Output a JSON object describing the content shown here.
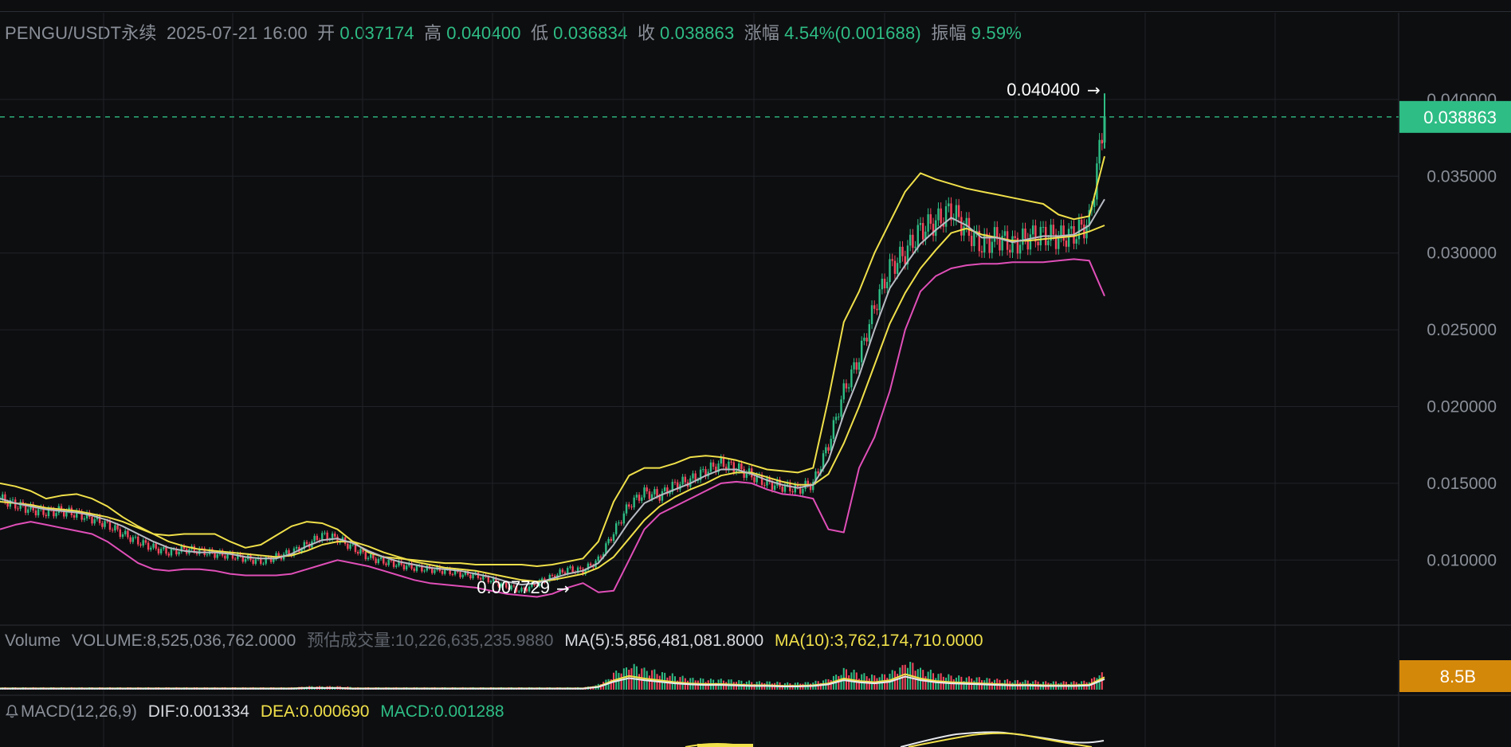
{
  "header": {
    "symbol": "PENGU/USDT永续",
    "datetime": "2025-07-21 16:00",
    "open_label": "开",
    "open": "0.037174",
    "high_label": "高",
    "high": "0.040400",
    "low_label": "低",
    "low": "0.036834",
    "close_label": "收",
    "close": "0.038863",
    "change_label": "涨幅",
    "change": "4.54%(0.001688)",
    "amplitude_label": "振幅",
    "amplitude": "9.59%"
  },
  "volume": {
    "title": "Volume",
    "volume": "VOLUME:8,525,036,762.0000",
    "estimated": "预估成交量:10,226,635,235.9880",
    "ma5": "MA(5):5,856,481,081.8000",
    "ma10": "MA(10):3,762,174,710.0000",
    "badge": "8.5B"
  },
  "macd": {
    "title": "MACD(12,26,9)",
    "dif": "DIF:0.001334",
    "dea": "DEA:0.000690",
    "macd": "MACD:0.001288"
  },
  "colors": {
    "up": "#2ebd85",
    "down": "#f6465d",
    "bg": "#0d0e10",
    "grid": "#1f2227",
    "ma_yellow": "#f0e04a",
    "boll_lower": "#e04fb8",
    "ma_white": "#e6e8ec"
  },
  "chart_data": {
    "type": "line",
    "price_axis": {
      "ticks": [
        0.04,
        0.035,
        0.03,
        0.025,
        0.02,
        0.015,
        0.01
      ],
      "tick_labels": [
        "0.040000",
        "0.035000",
        "0.030000",
        "0.025000",
        "0.020000",
        "0.015000",
        "0.010000"
      ],
      "range": [
        0.0055,
        0.0415
      ]
    },
    "current_price": "0.038863",
    "high_marker": "0.040400",
    "low_marker": "0.007729",
    "close_series": [
      0.014,
      0.0136,
      0.0133,
      0.0131,
      0.0132,
      0.013,
      0.0127,
      0.0123,
      0.0117,
      0.0112,
      0.0108,
      0.0105,
      0.0107,
      0.0106,
      0.0104,
      0.0103,
      0.0101,
      0.0099,
      0.0102,
      0.0105,
      0.011,
      0.0116,
      0.0114,
      0.0108,
      0.0102,
      0.0099,
      0.0097,
      0.0095,
      0.0094,
      0.0093,
      0.0091,
      0.009,
      0.0087,
      0.0083,
      0.008,
      0.0085,
      0.0089,
      0.0094,
      0.0093,
      0.01,
      0.0118,
      0.0136,
      0.0144,
      0.0142,
      0.0149,
      0.0152,
      0.0158,
      0.0163,
      0.016,
      0.0155,
      0.015,
      0.0148,
      0.0146,
      0.015,
      0.0175,
      0.021,
      0.0232,
      0.0265,
      0.029,
      0.03,
      0.0315,
      0.032,
      0.0328,
      0.0315,
      0.0305,
      0.031,
      0.0305,
      0.031,
      0.0312,
      0.031,
      0.0312,
      0.032,
      0.0389
    ],
    "ma_white_series": [
      0.014,
      0.0137,
      0.0135,
      0.0133,
      0.0132,
      0.0131,
      0.0129,
      0.0126,
      0.0122,
      0.0117,
      0.0112,
      0.0108,
      0.0106,
      0.0105,
      0.0105,
      0.0104,
      0.0102,
      0.0101,
      0.0101,
      0.0104,
      0.0109,
      0.0113,
      0.0114,
      0.0111,
      0.0106,
      0.0102,
      0.0099,
      0.0097,
      0.0095,
      0.0094,
      0.0093,
      0.0091,
      0.0089,
      0.0086,
      0.0084,
      0.0085,
      0.0088,
      0.0091,
      0.0093,
      0.0098,
      0.011,
      0.0125,
      0.0137,
      0.0142,
      0.0146,
      0.015,
      0.0155,
      0.0159,
      0.0159,
      0.0156,
      0.0152,
      0.0149,
      0.0147,
      0.0149,
      0.0165,
      0.0195,
      0.022,
      0.025,
      0.0277,
      0.0292,
      0.0306,
      0.0315,
      0.0323,
      0.0318,
      0.031,
      0.031,
      0.0307,
      0.0309,
      0.0311,
      0.0311,
      0.0312,
      0.0318,
      0.0335
    ],
    "ma_yellow_series": [
      0.0138,
      0.0137,
      0.0136,
      0.0134,
      0.0133,
      0.0132,
      0.013,
      0.0128,
      0.0125,
      0.0121,
      0.0117,
      0.0112,
      0.0109,
      0.0107,
      0.0106,
      0.0105,
      0.0104,
      0.0103,
      0.0102,
      0.0103,
      0.0106,
      0.011,
      0.0112,
      0.0112,
      0.0109,
      0.0105,
      0.0102,
      0.0099,
      0.0097,
      0.0095,
      0.0094,
      0.0093,
      0.0091,
      0.0089,
      0.0087,
      0.0086,
      0.0087,
      0.0089,
      0.0091,
      0.0095,
      0.0102,
      0.0114,
      0.0126,
      0.0135,
      0.0141,
      0.0146,
      0.015,
      0.0155,
      0.0157,
      0.0157,
      0.0154,
      0.0151,
      0.0149,
      0.0149,
      0.0156,
      0.0176,
      0.02,
      0.0227,
      0.0254,
      0.0274,
      0.029,
      0.0302,
      0.0313,
      0.0316,
      0.0312,
      0.031,
      0.0308,
      0.0308,
      0.0309,
      0.031,
      0.0311,
      0.0314,
      0.0318
    ],
    "boll_upper_series": [
      0.015,
      0.0148,
      0.0145,
      0.014,
      0.0142,
      0.0143,
      0.014,
      0.0135,
      0.0128,
      0.0122,
      0.0117,
      0.0116,
      0.0117,
      0.0117,
      0.0117,
      0.0112,
      0.0108,
      0.011,
      0.0116,
      0.0122,
      0.0125,
      0.0124,
      0.012,
      0.0112,
      0.0105,
      0.0102,
      0.0101,
      0.01,
      0.0099,
      0.0098,
      0.0098,
      0.0097,
      0.0097,
      0.0097,
      0.0097,
      0.0096,
      0.0097,
      0.0099,
      0.0101,
      0.0112,
      0.0138,
      0.0155,
      0.016,
      0.016,
      0.0163,
      0.0167,
      0.0168,
      0.0167,
      0.0165,
      0.0162,
      0.0159,
      0.0158,
      0.0157,
      0.016,
      0.0205,
      0.0255,
      0.0275,
      0.03,
      0.032,
      0.034,
      0.0352,
      0.0348,
      0.0345,
      0.0342,
      0.034,
      0.0338,
      0.0336,
      0.0334,
      0.0332,
      0.0325,
      0.0322,
      0.0324,
      0.0363
    ],
    "boll_lower_series": [
      0.012,
      0.0123,
      0.0125,
      0.0123,
      0.0121,
      0.0119,
      0.0117,
      0.0112,
      0.0105,
      0.0098,
      0.0094,
      0.0093,
      0.0094,
      0.0094,
      0.0093,
      0.0091,
      0.009,
      0.009,
      0.009,
      0.0091,
      0.0094,
      0.0097,
      0.01,
      0.0098,
      0.0096,
      0.0093,
      0.009,
      0.0087,
      0.0085,
      0.0084,
      0.0083,
      0.0082,
      0.008,
      0.0078,
      0.0077,
      0.0076,
      0.0078,
      0.0082,
      0.0085,
      0.0079,
      0.008,
      0.01,
      0.012,
      0.013,
      0.0135,
      0.014,
      0.0145,
      0.015,
      0.0151,
      0.015,
      0.0146,
      0.0143,
      0.0142,
      0.014,
      0.012,
      0.0118,
      0.016,
      0.018,
      0.021,
      0.025,
      0.0275,
      0.0285,
      0.029,
      0.0292,
      0.0293,
      0.0293,
      0.0294,
      0.0294,
      0.0294,
      0.0295,
      0.0296,
      0.0295,
      0.0272
    ],
    "volume_series": [
      0.02,
      0.02,
      0.02,
      0.02,
      0.02,
      0.02,
      0.02,
      0.02,
      0.02,
      0.02,
      0.02,
      0.02,
      0.02,
      0.02,
      0.02,
      0.02,
      0.02,
      0.02,
      0.02,
      0.02,
      0.03,
      0.03,
      0.03,
      0.02,
      0.02,
      0.02,
      0.02,
      0.02,
      0.02,
      0.02,
      0.02,
      0.02,
      0.02,
      0.02,
      0.02,
      0.02,
      0.02,
      0.02,
      0.02,
      0.05,
      0.15,
      0.22,
      0.18,
      0.15,
      0.12,
      0.1,
      0.09,
      0.09,
      0.08,
      0.07,
      0.07,
      0.06,
      0.06,
      0.07,
      0.1,
      0.18,
      0.14,
      0.12,
      0.15,
      0.25,
      0.18,
      0.14,
      0.12,
      0.11,
      0.1,
      0.09,
      0.08,
      0.08,
      0.07,
      0.07,
      0.07,
      0.08,
      0.2
    ]
  }
}
